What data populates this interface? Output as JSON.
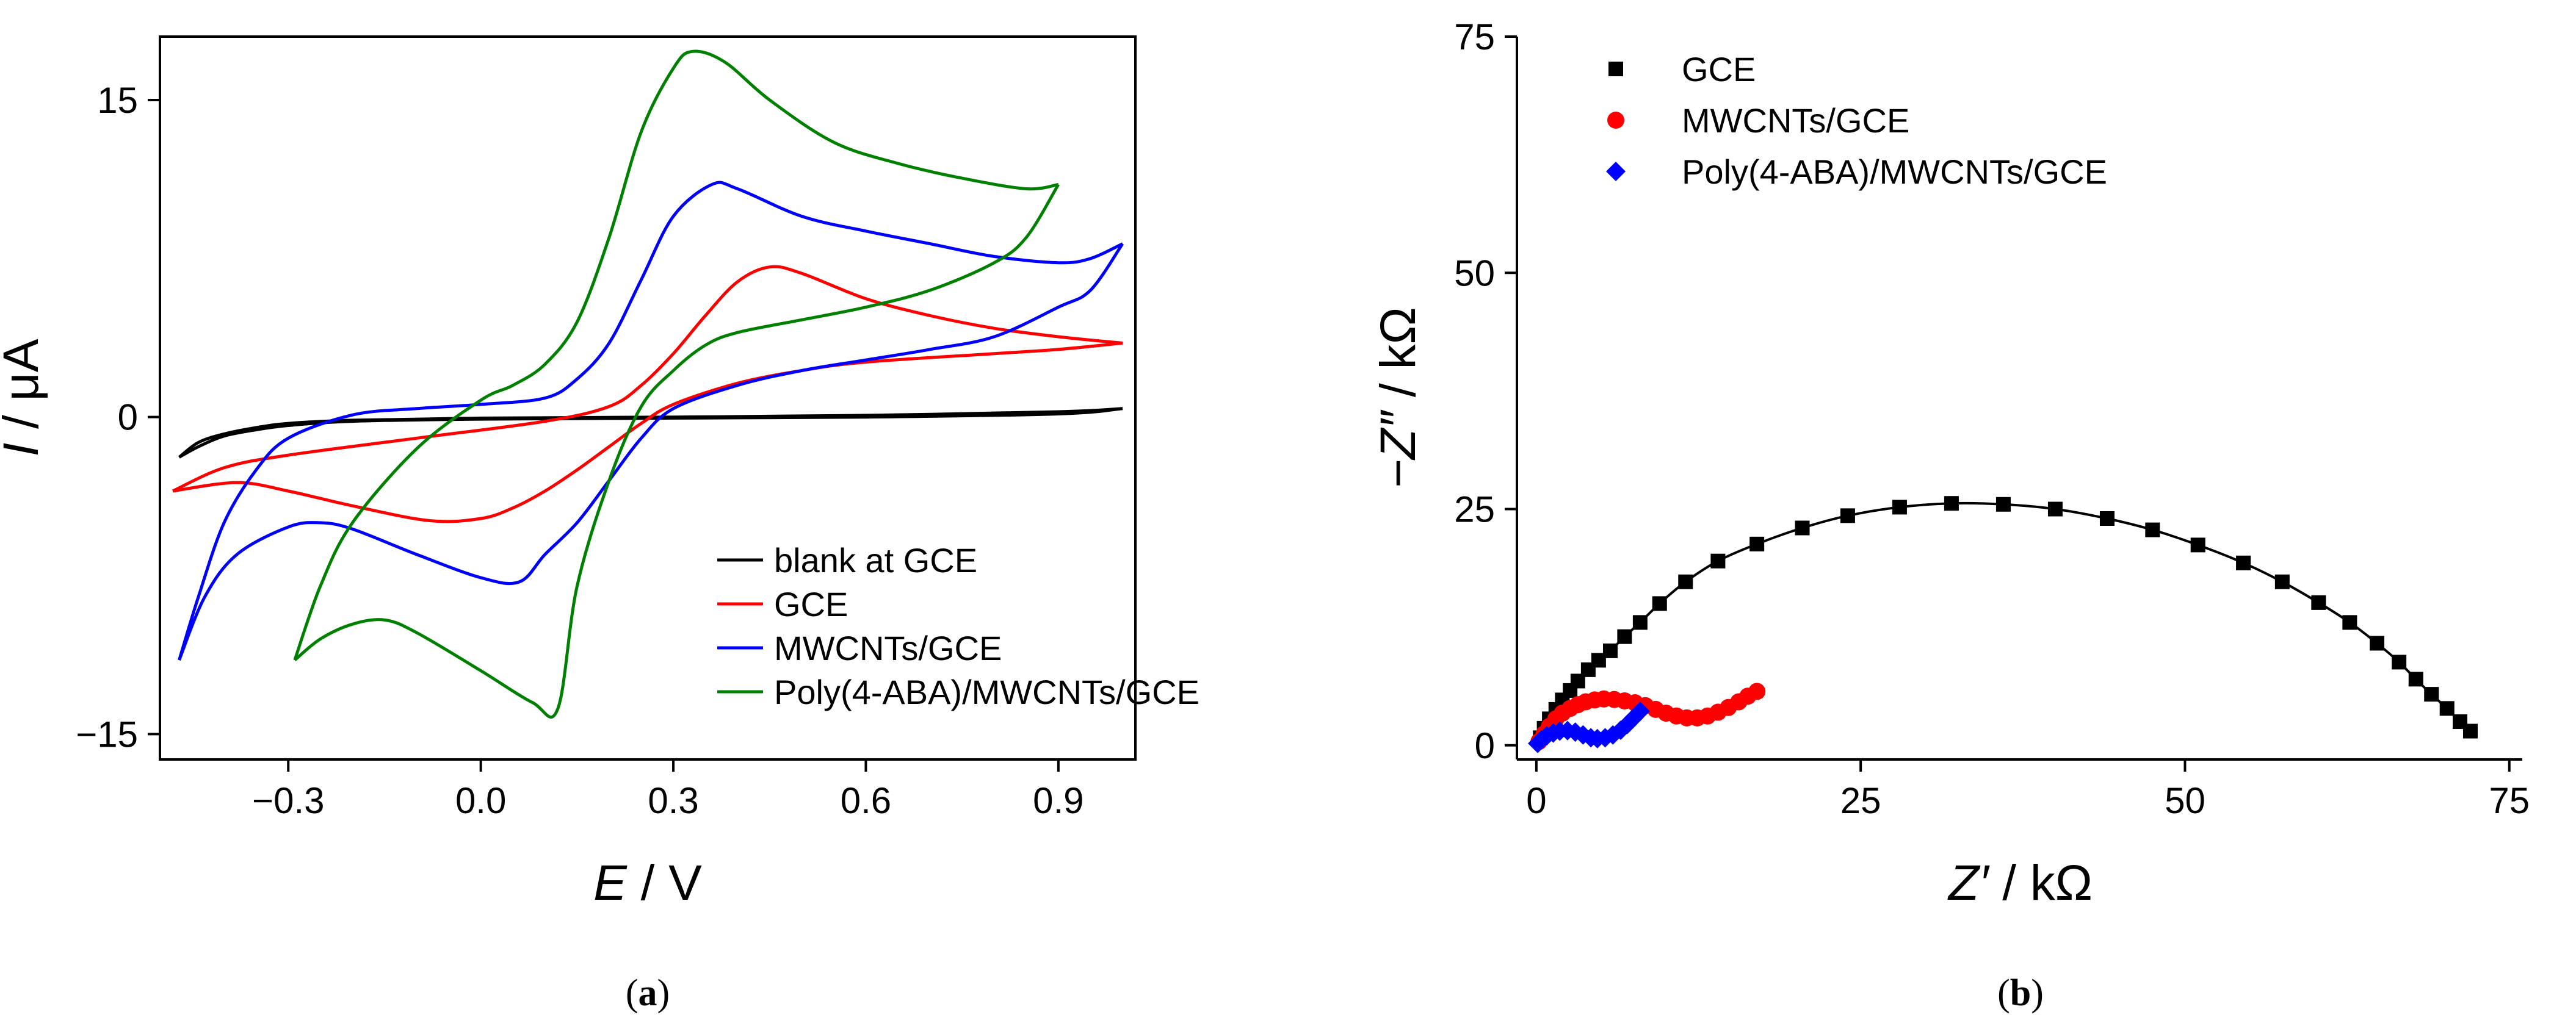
{
  "chart_data": [
    {
      "type": "line",
      "panel_label": "(a)",
      "panel_letter": "a",
      "xlabel_symbol": "E",
      "xlabel_unit": " / V",
      "ylabel_symbol": "I",
      "ylabel_unit": " / μA",
      "xlim": [
        -0.5,
        1.02
      ],
      "ylim": [
        -16.2,
        18
      ],
      "xticks": [
        -0.3,
        0.0,
        0.3,
        0.6,
        0.9
      ],
      "xtick_labels": [
        "−0.3",
        "0.0",
        "0.3",
        "0.6",
        "0.9"
      ],
      "yticks": [
        -15,
        0,
        15
      ],
      "ytick_labels": [
        "−15",
        "0",
        "15"
      ],
      "legend_position": "bottom-right",
      "series": [
        {
          "name": "blank at GCE",
          "color": "#000000",
          "forward": [
            [
              -0.47,
              -1.9
            ],
            [
              -0.44,
              -1.2
            ],
            [
              -0.4,
              -0.8
            ],
            [
              -0.35,
              -0.5
            ],
            [
              -0.3,
              -0.3
            ],
            [
              -0.2,
              -0.15
            ],
            [
              0.0,
              -0.05
            ],
            [
              0.3,
              0.0
            ],
            [
              0.6,
              0.08
            ],
            [
              0.9,
              0.25
            ],
            [
              1.0,
              0.4
            ]
          ],
          "reverse": [
            [
              1.0,
              0.4
            ],
            [
              0.9,
              0.15
            ],
            [
              0.6,
              0.0
            ],
            [
              0.3,
              -0.05
            ],
            [
              0.0,
              -0.1
            ],
            [
              -0.2,
              -0.2
            ],
            [
              -0.3,
              -0.4
            ],
            [
              -0.35,
              -0.6
            ],
            [
              -0.4,
              -0.9
            ],
            [
              -0.44,
              -1.4
            ],
            [
              -0.47,
              -1.9
            ]
          ]
        },
        {
          "name": "GCE",
          "color": "#ff0000",
          "forward": [
            [
              -0.48,
              -3.5
            ],
            [
              -0.4,
              -2.4
            ],
            [
              -0.3,
              -1.8
            ],
            [
              -0.1,
              -1.0
            ],
            [
              0.1,
              -0.2
            ],
            [
              0.2,
              0.5
            ],
            [
              0.25,
              1.5
            ],
            [
              0.3,
              3.0
            ],
            [
              0.35,
              4.8
            ],
            [
              0.4,
              6.4
            ],
            [
              0.45,
              7.1
            ],
            [
              0.5,
              6.8
            ],
            [
              0.6,
              5.6
            ],
            [
              0.7,
              4.8
            ],
            [
              0.8,
              4.2
            ],
            [
              0.9,
              3.8
            ],
            [
              1.0,
              3.5
            ]
          ],
          "reverse": [
            [
              1.0,
              3.5
            ],
            [
              0.9,
              3.2
            ],
            [
              0.8,
              3.0
            ],
            [
              0.6,
              2.6
            ],
            [
              0.5,
              2.2
            ],
            [
              0.4,
              1.6
            ],
            [
              0.3,
              0.6
            ],
            [
              0.25,
              -0.3
            ],
            [
              0.2,
              -1.4
            ],
            [
              0.15,
              -2.5
            ],
            [
              0.1,
              -3.5
            ],
            [
              0.05,
              -4.3
            ],
            [
              0.0,
              -4.8
            ],
            [
              -0.08,
              -4.9
            ],
            [
              -0.2,
              -4.2
            ],
            [
              -0.3,
              -3.5
            ],
            [
              -0.38,
              -3.1
            ],
            [
              -0.48,
              -3.5
            ]
          ]
        },
        {
          "name": "MWCNTs/GCE",
          "color": "#0000ff",
          "forward": [
            [
              -0.47,
              -11.5
            ],
            [
              -0.44,
              -8.5
            ],
            [
              -0.4,
              -5.0
            ],
            [
              -0.35,
              -2.5
            ],
            [
              -0.3,
              -1.0
            ],
            [
              -0.2,
              0.1
            ],
            [
              -0.1,
              0.4
            ],
            [
              0.0,
              0.6
            ],
            [
              0.1,
              0.9
            ],
            [
              0.15,
              1.8
            ],
            [
              0.2,
              3.5
            ],
            [
              0.25,
              6.5
            ],
            [
              0.3,
              9.5
            ],
            [
              0.36,
              11.0
            ],
            [
              0.4,
              10.8
            ],
            [
              0.5,
              9.5
            ],
            [
              0.6,
              8.8
            ],
            [
              0.7,
              8.2
            ],
            [
              0.8,
              7.6
            ],
            [
              0.9,
              7.3
            ],
            [
              0.95,
              7.5
            ],
            [
              1.0,
              8.2
            ]
          ],
          "reverse": [
            [
              1.0,
              8.2
            ],
            [
              0.95,
              6.0
            ],
            [
              0.9,
              5.2
            ],
            [
              0.8,
              3.8
            ],
            [
              0.7,
              3.2
            ],
            [
              0.6,
              2.7
            ],
            [
              0.5,
              2.2
            ],
            [
              0.4,
              1.5
            ],
            [
              0.3,
              0.4
            ],
            [
              0.25,
              -1.0
            ],
            [
              0.2,
              -3.0
            ],
            [
              0.15,
              -5.0
            ],
            [
              0.1,
              -6.5
            ],
            [
              0.06,
              -7.8
            ],
            [
              0.0,
              -7.6
            ],
            [
              -0.1,
              -6.5
            ],
            [
              -0.2,
              -5.3
            ],
            [
              -0.25,
              -5.0
            ],
            [
              -0.3,
              -5.2
            ],
            [
              -0.38,
              -6.5
            ],
            [
              -0.43,
              -8.5
            ],
            [
              -0.47,
              -11.5
            ]
          ]
        },
        {
          "name": "Poly(4-ABA)/MWCNTs/GCE",
          "color": "#008000",
          "forward": [
            [
              -0.29,
              -11.5
            ],
            [
              -0.25,
              -8.0
            ],
            [
              -0.2,
              -5.0
            ],
            [
              -0.1,
              -1.5
            ],
            [
              0.0,
              0.8
            ],
            [
              0.05,
              1.5
            ],
            [
              0.1,
              2.5
            ],
            [
              0.15,
              4.5
            ],
            [
              0.2,
              8.5
            ],
            [
              0.25,
              13.5
            ],
            [
              0.3,
              16.5
            ],
            [
              0.33,
              17.3
            ],
            [
              0.38,
              16.8
            ],
            [
              0.45,
              15.0
            ],
            [
              0.55,
              13.0
            ],
            [
              0.65,
              12.0
            ],
            [
              0.75,
              11.3
            ],
            [
              0.85,
              10.8
            ],
            [
              0.9,
              11.0
            ]
          ],
          "reverse": [
            [
              0.9,
              11.0
            ],
            [
              0.85,
              8.5
            ],
            [
              0.8,
              7.3
            ],
            [
              0.7,
              6.0
            ],
            [
              0.6,
              5.2
            ],
            [
              0.5,
              4.6
            ],
            [
              0.4,
              4.0
            ],
            [
              0.35,
              3.4
            ],
            [
              0.3,
              2.2
            ],
            [
              0.25,
              0.5
            ],
            [
              0.2,
              -3.0
            ],
            [
              0.15,
              -8.0
            ],
            [
              0.12,
              -13.8
            ],
            [
              0.08,
              -13.5
            ],
            [
              0.0,
              -12.0
            ],
            [
              -0.1,
              -10.2
            ],
            [
              -0.15,
              -9.6
            ],
            [
              -0.2,
              -9.8
            ],
            [
              -0.25,
              -10.5
            ],
            [
              -0.29,
              -11.5
            ]
          ]
        }
      ]
    },
    {
      "type": "scatter",
      "panel_label": "(b)",
      "panel_letter": "b",
      "xlabel_symbol": "Z′",
      "xlabel_unit": " / kΩ",
      "ylabel_symbol": "−Z″",
      "ylabel_unit": " / kΩ",
      "xlim": [
        -1.5,
        76
      ],
      "ylim": [
        -1.5,
        75
      ],
      "xticks": [
        0,
        25,
        50,
        75
      ],
      "xtick_labels": [
        "0",
        "25",
        "50",
        "75"
      ],
      "yticks": [
        0,
        25,
        50,
        75
      ],
      "ytick_labels": [
        "0",
        "25",
        "50",
        "75"
      ],
      "legend_position": "top-left",
      "series": [
        {
          "name": "GCE",
          "color": "#000000",
          "marker": "square",
          "fit_line": true,
          "points": [
            [
              0.3,
              0.8
            ],
            [
              0.6,
              1.8
            ],
            [
              1.0,
              2.8
            ],
            [
              1.5,
              3.8
            ],
            [
              2.0,
              4.8
            ],
            [
              2.6,
              5.8
            ],
            [
              3.2,
              6.8
            ],
            [
              4.0,
              8.0
            ],
            [
              4.8,
              9.0
            ],
            [
              5.7,
              10.0
            ],
            [
              6.8,
              11.5
            ],
            [
              8.0,
              13.0
            ],
            [
              9.5,
              15.0
            ],
            [
              11.5,
              17.3
            ],
            [
              14.0,
              19.5
            ],
            [
              17.0,
              21.3
            ],
            [
              20.5,
              23.0
            ],
            [
              24.0,
              24.3
            ],
            [
              28.0,
              25.2
            ],
            [
              32.0,
              25.6
            ],
            [
              36.0,
              25.5
            ],
            [
              40.0,
              25.0
            ],
            [
              44.0,
              24.0
            ],
            [
              47.5,
              22.8
            ],
            [
              51.0,
              21.2
            ],
            [
              54.5,
              19.3
            ],
            [
              57.5,
              17.3
            ],
            [
              60.3,
              15.1
            ],
            [
              62.7,
              13.0
            ],
            [
              64.8,
              10.8
            ],
            [
              66.5,
              8.8
            ],
            [
              67.8,
              7.0
            ],
            [
              69.0,
              5.4
            ],
            [
              70.2,
              3.9
            ],
            [
              71.2,
              2.5
            ],
            [
              72.0,
              1.5
            ]
          ]
        },
        {
          "name": "MWCNTs/GCE",
          "color": "#ff0000",
          "marker": "circle",
          "fit_line": false,
          "points": [
            [
              0.2,
              0.4
            ],
            [
              0.6,
              1.2
            ],
            [
              1.0,
              2.0
            ],
            [
              1.5,
              2.8
            ],
            [
              2.0,
              3.4
            ],
            [
              2.6,
              3.9
            ],
            [
              3.2,
              4.3
            ],
            [
              3.8,
              4.6
            ],
            [
              4.5,
              4.8
            ],
            [
              5.2,
              4.9
            ],
            [
              6.0,
              4.85
            ],
            [
              6.8,
              4.7
            ],
            [
              7.6,
              4.5
            ],
            [
              8.4,
              4.2
            ],
            [
              9.2,
              3.8
            ],
            [
              10.0,
              3.4
            ],
            [
              10.8,
              3.1
            ],
            [
              11.6,
              2.9
            ],
            [
              12.4,
              2.9
            ],
            [
              13.2,
              3.1
            ],
            [
              14.0,
              3.5
            ],
            [
              14.8,
              4.0
            ],
            [
              15.6,
              4.6
            ],
            [
              16.3,
              5.2
            ],
            [
              17.0,
              5.7
            ]
          ]
        },
        {
          "name": "Poly(4-ABA)/MWCNTs/GCE",
          "color": "#0000ff",
          "marker": "diamond",
          "fit_line": false,
          "points": [
            [
              0.1,
              0.2
            ],
            [
              0.4,
              0.6
            ],
            [
              0.8,
              1.0
            ],
            [
              1.3,
              1.3
            ],
            [
              1.8,
              1.5
            ],
            [
              2.4,
              1.55
            ],
            [
              3.0,
              1.4
            ],
            [
              3.6,
              1.1
            ],
            [
              4.2,
              0.8
            ],
            [
              4.7,
              0.7
            ],
            [
              5.3,
              0.8
            ],
            [
              5.9,
              1.1
            ],
            [
              6.5,
              1.6
            ],
            [
              7.0,
              2.2
            ],
            [
              7.5,
              2.9
            ],
            [
              8.0,
              3.6
            ]
          ]
        }
      ]
    }
  ]
}
